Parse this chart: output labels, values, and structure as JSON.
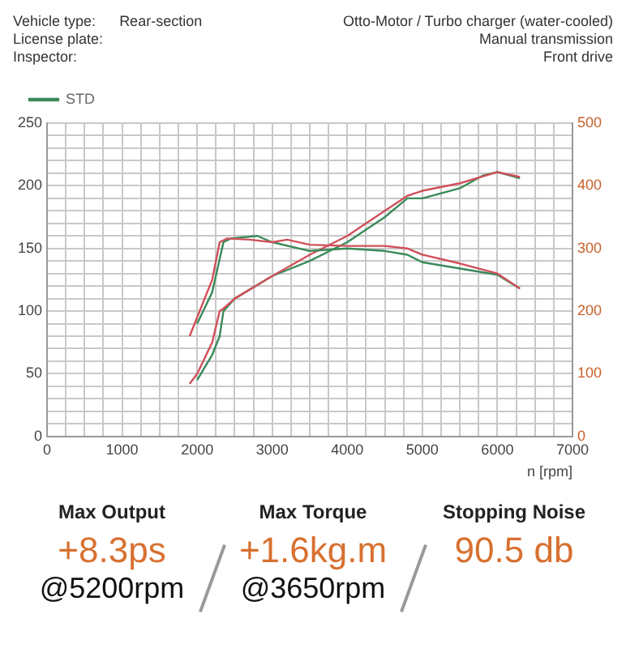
{
  "chart_data": {
    "type": "line",
    "xlabel": "n [rpm]",
    "annotations": [
      "Vehicle type:",
      "Rear-section",
      "License plate:",
      "Inspector:",
      "Otto-Motor / Turbo charger (water-cooled)",
      "Manual transmission",
      "Front drive",
      "Max Output",
      "+8.3ps",
      "@5200rpm",
      "Max Torque",
      "+1.6kg.m",
      "@3650rpm",
      "Stopping Noise",
      "90.5 db"
    ],
    "series": [
      {
        "color": "#d0505a",
        "axis": "y2",
        "x": [
          1900,
          2000,
          2200,
          2300,
          2400,
          2700,
          3000,
          3200,
          3500,
          4000,
          4500,
          4800,
          5000,
          5500,
          6000,
          6300
        ],
        "values": [
          160,
          190,
          250,
          310,
          316,
          314,
          310,
          314,
          306,
          304,
          304,
          300,
          290,
          276,
          260,
          236
        ]
      },
      {
        "name": "STD",
        "color": "#3a8a5a",
        "axis": "y2",
        "x": [
          2000,
          2200,
          2350,
          2450,
          2800,
          3000,
          3500,
          4000,
          4500,
          4800,
          5000,
          5500,
          6000,
          6300
        ],
        "values": [
          180,
          230,
          310,
          316,
          320,
          310,
          296,
          300,
          296,
          290,
          278,
          268,
          258,
          236
        ]
      },
      {
        "color": "#d0505a",
        "x": [
          1900,
          2000,
          2200,
          2300,
          2350,
          2500,
          3000,
          3500,
          4000,
          4500,
          4800,
          5000,
          5500,
          6000,
          6300
        ],
        "values": [
          42,
          50,
          75,
          100,
          102,
          110,
          128,
          145,
          160,
          180,
          192,
          196,
          202,
          211,
          207
        ]
      },
      {
        "color": "#3a8a5a",
        "x": [
          2000,
          2200,
          2300,
          2350,
          2500,
          3000,
          3500,
          4000,
          4500,
          4800,
          5000,
          5500,
          5800,
          6000,
          6300
        ],
        "values": [
          45,
          65,
          80,
          100,
          110,
          128,
          140,
          155,
          175,
          190,
          190,
          198,
          208,
          211,
          206
        ]
      }
    ],
    "xlim": [
      0,
      7000
    ],
    "xticks": [
      0,
      {
        "value": 250,
        "label": null
      },
      1000,
      {
        "value": 1250,
        "label": null
      },
      2000,
      {
        "value": 2250,
        "label": null
      },
      3000,
      {
        "value": 3250,
        "label": null
      },
      4000,
      {
        "value": 4250,
        "label": null
      },
      5000,
      {
        "value": 5250,
        "label": null
      },
      6000,
      {
        "value": 6250,
        "label": null
      },
      7000,
      {
        "value": 500,
        "label": null
      },
      {
        "value": 750,
        "label": null
      },
      {
        "value": 1500,
        "label": null
      },
      {
        "value": 1750,
        "label": null
      },
      {
        "value": 2500,
        "label": null
      },
      {
        "value": 2750,
        "label": null
      },
      {
        "value": 3500,
        "label": null
      },
      {
        "value": 3750,
        "label": null
      },
      {
        "value": 4500,
        "label": null
      },
      {
        "value": 4750,
        "label": null
      },
      {
        "value": 5500,
        "label": null
      },
      {
        "value": 5750,
        "label": null
      },
      {
        "value": 6500,
        "label": null
      },
      {
        "value": 6750,
        "label": null
      }
    ],
    "ylim": [
      0,
      250
    ],
    "yticks": [
      0,
      {
        "value": 10,
        "label": null
      },
      {
        "value": 20,
        "label": null
      },
      {
        "value": 30,
        "label": null
      },
      {
        "value": 40,
        "label": null
      },
      50,
      {
        "value": 60,
        "label": null
      },
      {
        "value": 70,
        "label": null
      },
      {
        "value": 80,
        "label": null
      },
      {
        "value": 90,
        "label": null
      },
      100,
      {
        "value": 110,
        "label": null
      },
      {
        "value": 120,
        "label": null
      },
      {
        "value": 130,
        "label": null
      },
      {
        "value": 140,
        "label": null
      },
      150,
      {
        "value": 160,
        "label": null
      },
      {
        "value": 170,
        "label": null
      },
      {
        "value": 180,
        "label": null
      },
      {
        "value": 190,
        "label": null
      },
      200,
      {
        "value": 210,
        "label": null
      },
      {
        "value": 220,
        "label": null
      },
      {
        "value": 230,
        "label": null
      },
      {
        "value": 240,
        "label": null
      },
      250
    ],
    "y2lim": [
      0,
      500
    ],
    "y2ticks": [
      0,
      100,
      200,
      300,
      400,
      500
    ],
    "grid": true,
    "legend": "top left",
    "marker": "none",
    "line_style": "solid"
  }
}
